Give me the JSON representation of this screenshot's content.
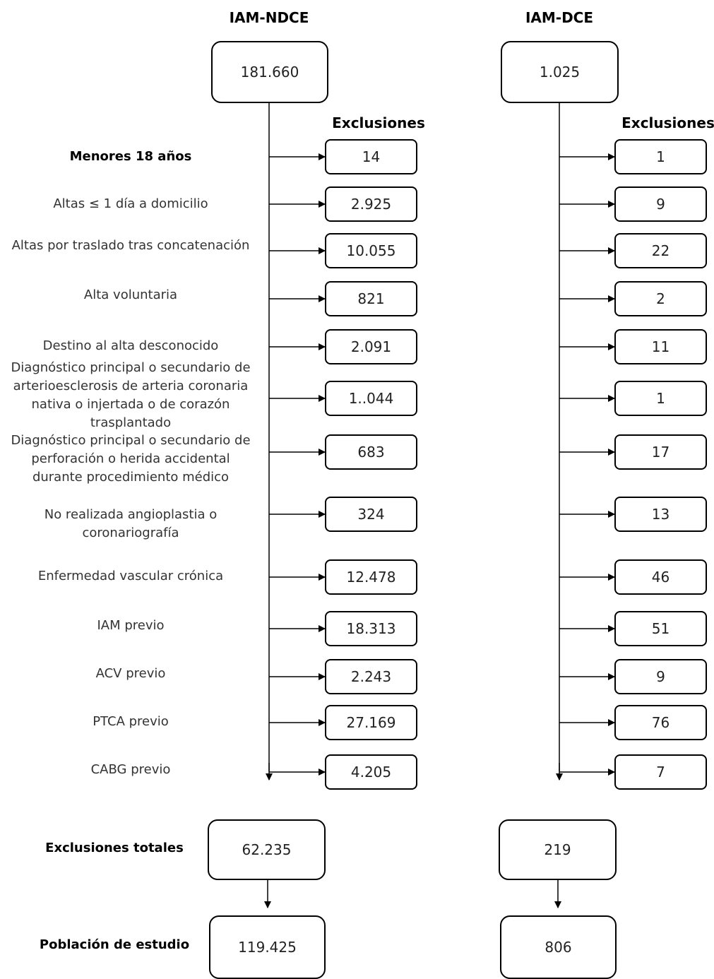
{
  "columns": [
    {
      "title": "IAM-NDCE",
      "start": "181.660",
      "exclusions_header": "Exclusiones",
      "exclusions": [
        "14",
        "2.925",
        "10.055",
        "821",
        "2.091",
        "1..044",
        "683",
        "324",
        "12.478",
        "18.313",
        "2.243",
        "27.169",
        "4.205"
      ],
      "total": "62.235",
      "population": "119.425"
    },
    {
      "title": "IAM-DCE",
      "start": "1.025",
      "exclusions_header": "Exclusiones",
      "exclusions": [
        "1",
        "9",
        "22",
        "2",
        "11",
        "1",
        "17",
        "13",
        "46",
        "51",
        "9",
        "76",
        "7"
      ],
      "total": "219",
      "population": "806"
    }
  ],
  "criteria": [
    "Menores 18 años",
    "Altas ≤ 1 día a domicilio",
    "Altas por traslado tras concatenación",
    "Alta voluntaria",
    "Destino al alta desconocido",
    "Diagnóstico principal o secundario de arterioesclerosis de arteria coronaria nativa o injertada o de corazón trasplantado",
    "Diagnóstico principal o secundario de perforación o herida accidental durante procedimiento médico",
    "No realizada angioplastia o coronariografía",
    "Enfermedad vascular crónica",
    "IAM previo",
    "ACV previo",
    "PTCA previo",
    "CABG previo"
  ],
  "totals_label": "Exclusiones totales",
  "population_label": "Población de estudio"
}
